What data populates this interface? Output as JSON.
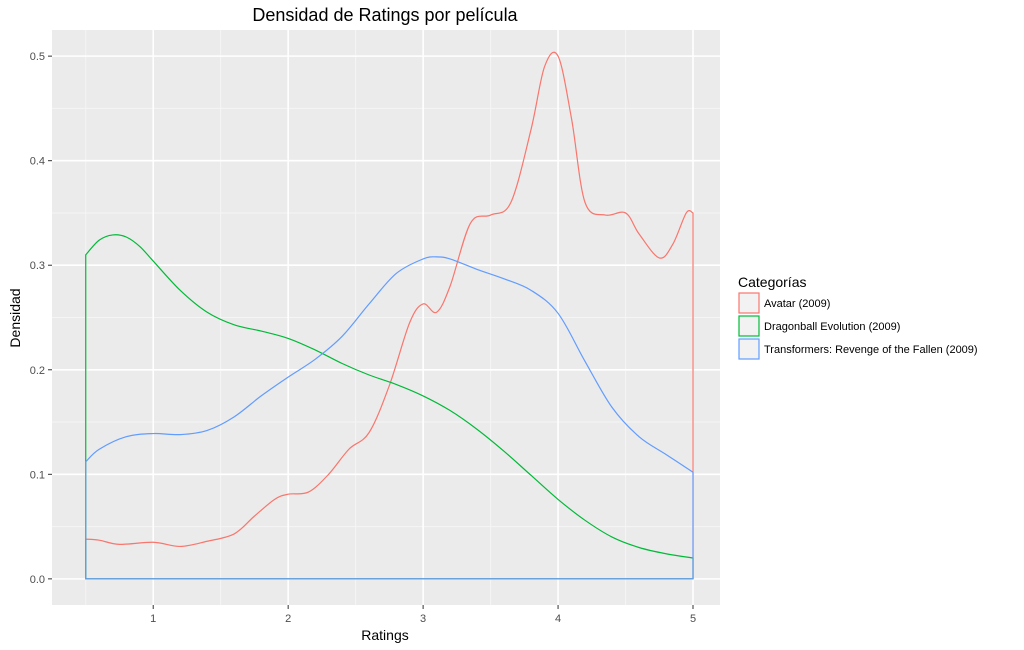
{
  "chart_data": {
    "type": "area",
    "title": "Densidad de Ratings por película",
    "xlabel": "Ratings",
    "ylabel": "Densidad",
    "xlim": [
      0.25,
      5.2
    ],
    "ylim": [
      -0.025,
      0.525
    ],
    "x_ticks": [
      1,
      2,
      3,
      4,
      5
    ],
    "y_ticks": [
      0.0,
      0.1,
      0.2,
      0.3,
      0.4,
      0.5
    ],
    "x_tick_labels": [
      "1",
      "2",
      "3",
      "4",
      "5"
    ],
    "y_tick_labels": [
      "0.0",
      "0.1",
      "0.2",
      "0.3",
      "0.4",
      "0.5"
    ],
    "grid": true,
    "background": "#ebebeb",
    "legend": {
      "title": "Categorías",
      "position": "right"
    },
    "series": [
      {
        "name": "Avatar (2009)",
        "color": "#f8766d",
        "x": [
          0.5,
          0.6,
          0.75,
          1.0,
          1.2,
          1.4,
          1.6,
          1.75,
          1.9,
          2.0,
          2.15,
          2.3,
          2.45,
          2.6,
          2.75,
          2.9,
          3.0,
          3.1,
          3.2,
          3.35,
          3.5,
          3.65,
          3.8,
          3.9,
          4.0,
          4.1,
          4.2,
          4.35,
          4.5,
          4.6,
          4.75,
          4.85,
          4.95,
          5.0
        ],
        "y": [
          0.038,
          0.037,
          0.033,
          0.035,
          0.031,
          0.036,
          0.043,
          0.06,
          0.076,
          0.081,
          0.083,
          0.1,
          0.124,
          0.14,
          0.185,
          0.245,
          0.263,
          0.255,
          0.28,
          0.34,
          0.348,
          0.36,
          0.43,
          0.49,
          0.5,
          0.44,
          0.36,
          0.348,
          0.35,
          0.33,
          0.307,
          0.32,
          0.35,
          0.35
        ]
      },
      {
        "name": "Dragonball Evolution (2009)",
        "color": "#00ba38",
        "x": [
          0.5,
          0.6,
          0.7,
          0.8,
          0.9,
          1.0,
          1.2,
          1.4,
          1.6,
          1.8,
          2.0,
          2.2,
          2.4,
          2.6,
          2.8,
          3.0,
          3.2,
          3.4,
          3.6,
          3.8,
          4.0,
          4.2,
          4.4,
          4.6,
          4.8,
          5.0
        ],
        "y": [
          0.31,
          0.324,
          0.329,
          0.327,
          0.318,
          0.304,
          0.276,
          0.255,
          0.243,
          0.237,
          0.23,
          0.219,
          0.206,
          0.195,
          0.186,
          0.175,
          0.161,
          0.143,
          0.122,
          0.099,
          0.076,
          0.056,
          0.04,
          0.03,
          0.024,
          0.02
        ]
      },
      {
        "name": "Transformers: Revenge of the Fallen (2009)",
        "color": "#619cff",
        "x": [
          0.5,
          0.6,
          0.8,
          1.0,
          1.2,
          1.4,
          1.6,
          1.8,
          2.0,
          2.2,
          2.4,
          2.6,
          2.8,
          3.0,
          3.1,
          3.2,
          3.4,
          3.6,
          3.8,
          4.0,
          4.2,
          4.4,
          4.6,
          4.8,
          5.0
        ],
        "y": [
          0.112,
          0.124,
          0.136,
          0.139,
          0.138,
          0.142,
          0.155,
          0.175,
          0.193,
          0.21,
          0.232,
          0.263,
          0.292,
          0.306,
          0.308,
          0.306,
          0.296,
          0.287,
          0.276,
          0.254,
          0.208,
          0.164,
          0.136,
          0.119,
          0.102
        ]
      }
    ]
  }
}
